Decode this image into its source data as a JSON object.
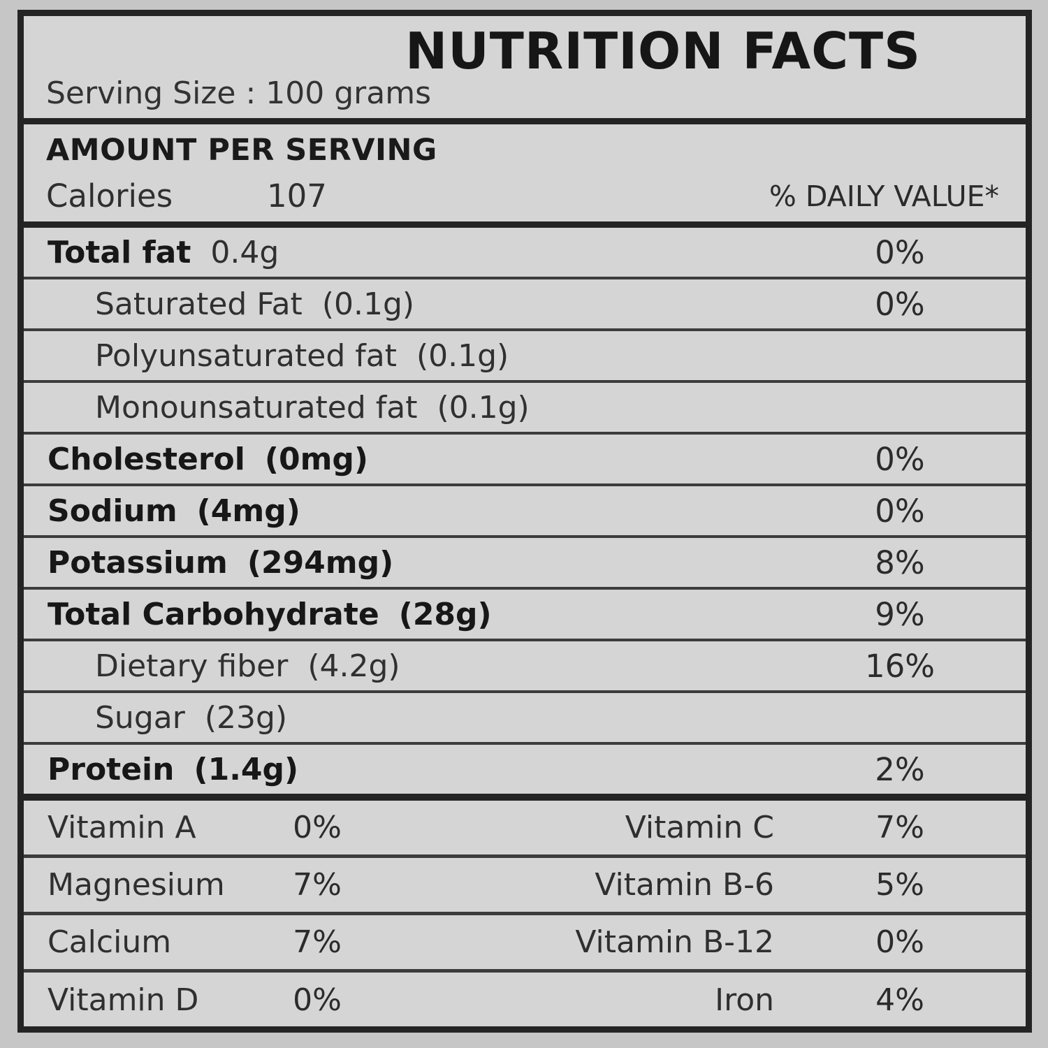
{
  "header": {
    "title": "NUTRITION FACTS",
    "serving_size": "Serving Size : 100 grams"
  },
  "amount_section": {
    "heading": "AMOUNT PER SERVING",
    "calories_label": "Calories",
    "calories_value": "107",
    "daily_value_header": "% DAILY VALUE*"
  },
  "rows": [
    {
      "label": "Total fat",
      "amount": "0.4g",
      "pct": "0%"
    },
    {
      "label": "Saturated Fat",
      "amount": "(0.1g)",
      "pct": "0%"
    },
    {
      "label": "Polyunsaturated fat",
      "amount": "(0.1g)",
      "pct": ""
    },
    {
      "label": "Monounsaturated fat",
      "amount": "(0.1g)",
      "pct": ""
    },
    {
      "label": "Cholesterol",
      "amount": "(0mg)",
      "pct": "0%"
    },
    {
      "label": "Sodium",
      "amount": "(4mg)",
      "pct": "0%"
    },
    {
      "label": "Potassium",
      "amount": "(294mg)",
      "pct": "8%"
    },
    {
      "label": "Total Carbohydrate",
      "amount": "(28g)",
      "pct": "9%"
    },
    {
      "label": "Dietary fiber",
      "amount": "(4.2g)",
      "pct": "16%"
    },
    {
      "label": "Sugar",
      "amount": "(23g)",
      "pct": ""
    },
    {
      "label": "Protein",
      "amount": "(1.4g)",
      "pct": "2%"
    }
  ],
  "vitamins": [
    {
      "left": {
        "label": "Vitamin A",
        "value": "0%"
      },
      "right": {
        "label": "Vitamin C",
        "value": "7%"
      }
    },
    {
      "left": {
        "label": "Magnesium",
        "value": "7%"
      },
      "right": {
        "label": "Vitamin B-6",
        "value": "5%"
      }
    },
    {
      "left": {
        "label": "Calcium",
        "value": "7%"
      },
      "right": {
        "label": "Vitamin B-12",
        "value": "0%"
      }
    },
    {
      "left": {
        "label": "Vitamin D",
        "value": "0%"
      },
      "right": {
        "label": "Iron",
        "value": "4%"
      }
    }
  ],
  "colors": {
    "page_background": "#c6c6c6",
    "label_background": "#d5d5d5",
    "outer_border": "#242424",
    "row_divider": "#3c3c3c",
    "text": "#2f2f2f",
    "text_bold": "#171717"
  }
}
